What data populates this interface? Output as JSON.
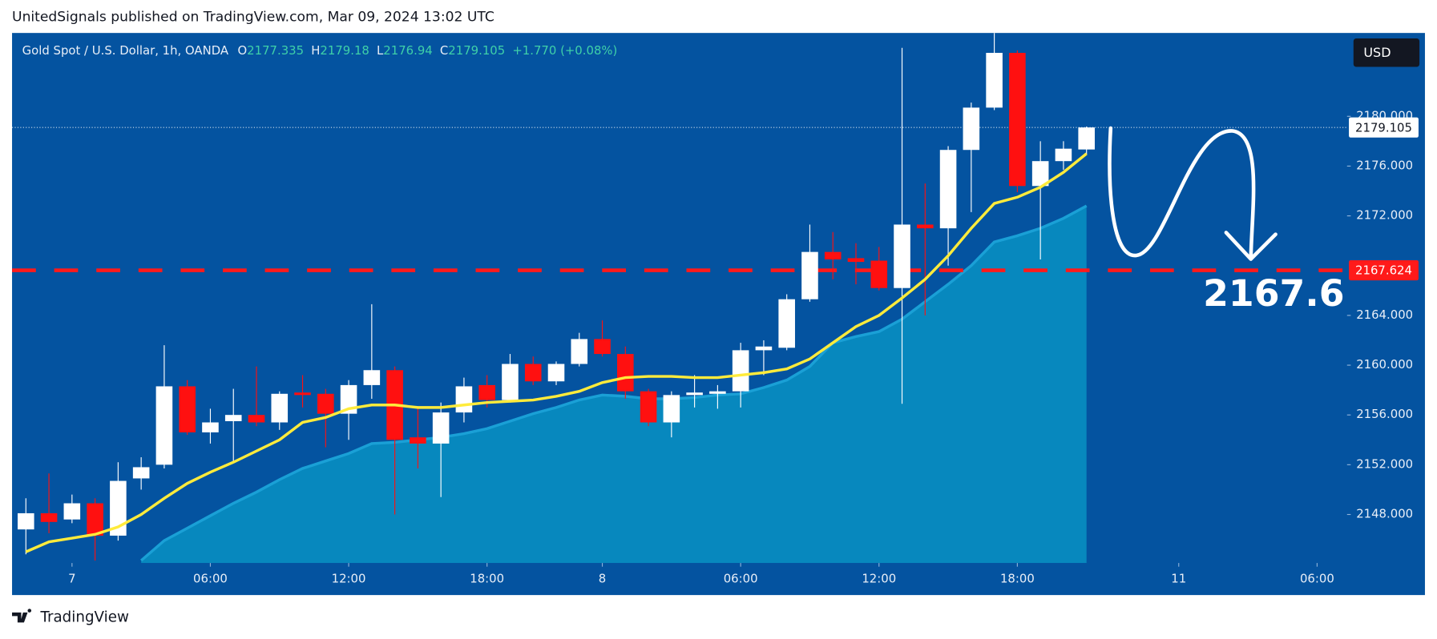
{
  "header": "UnitedSignals published on TradingView.com, Mar 09, 2024 13:02 UTC",
  "footer": "TradingView",
  "chart_data": {
    "type": "candlestick",
    "symbol": "Gold Spot / U.S. Dollar, 1h, OANDA",
    "legend_keys": [
      "O",
      "H",
      "L",
      "C"
    ],
    "change": "+1.770 (+0.08%)",
    "currency": "USD",
    "background": "#0453a0",
    "up_color": "#ffffff",
    "down_color": "#ff1010",
    "grid": false,
    "xlim": [
      -0.6,
      57.3
    ],
    "xticks": [
      {
        "value": 2,
        "label": "7"
      },
      {
        "value": 8,
        "label": "06:00"
      },
      {
        "value": 14,
        "label": "12:00"
      },
      {
        "value": 20,
        "label": "18:00"
      },
      {
        "value": 25,
        "label": "8"
      },
      {
        "value": 31,
        "label": "06:00"
      },
      {
        "value": 37,
        "label": "12:00"
      },
      {
        "value": 43,
        "label": "18:00"
      },
      {
        "value": 50,
        "label": "11"
      },
      {
        "value": 56,
        "label": "06:00"
      }
    ],
    "ylim": [
      2144.1,
      2186.7
    ],
    "yticks": [
      {
        "value": 2148,
        "label": "2148.000"
      },
      {
        "value": 2152,
        "label": "2152.000"
      },
      {
        "value": 2156,
        "label": "2156.000"
      },
      {
        "value": 2160,
        "label": "2160.000"
      },
      {
        "value": 2164,
        "label": "2164.000"
      },
      {
        "value": 2172,
        "label": "2172.000"
      },
      {
        "value": 2176,
        "label": "2176.000"
      },
      {
        "value": 2180,
        "label": "2180.000"
      }
    ],
    "candles": {
      "open": [
        2146.8,
        2148.1,
        2147.6,
        2148.9,
        2146.3,
        2150.9,
        2152.0,
        2158.3,
        2154.6,
        2155.5,
        2156.0,
        2155.4,
        2157.8,
        2157.7,
        2156.1,
        2158.4,
        2159.6,
        2154.2,
        2153.7,
        2156.2,
        2158.4,
        2157.2,
        2160.1,
        2158.7,
        2160.1,
        2162.1,
        2160.9,
        2157.9,
        2155.4,
        2157.6,
        2157.7,
        2157.9,
        2161.2,
        2161.4,
        2165.3,
        2169.1,
        2168.6,
        2168.4,
        2166.2,
        2171.3,
        2171.0,
        2177.3,
        2180.7,
        2185.1,
        2174.4,
        2176.4,
        2177.335
      ],
      "high": [
        2149.3,
        2151.3,
        2149.6,
        2149.3,
        2152.2,
        2152.6,
        2161.6,
        2158.8,
        2156.5,
        2158.1,
        2159.9,
        2157.9,
        2159.2,
        2158.1,
        2158.8,
        2164.9,
        2159.9,
        2156.6,
        2157.0,
        2159.0,
        2159.2,
        2160.9,
        2160.7,
        2160.3,
        2162.6,
        2163.6,
        2161.5,
        2158.1,
        2157.9,
        2159.2,
        2158.4,
        2161.8,
        2162.0,
        2165.7,
        2171.3,
        2170.7,
        2169.8,
        2169.5,
        2185.5,
        2174.6,
        2177.6,
        2181.1,
        2186.7,
        2185.3,
        2178.0,
        2178.0,
        2179.18
      ],
      "low": [
        2144.8,
        2146.5,
        2147.3,
        2144.3,
        2145.9,
        2150.0,
        2151.7,
        2154.4,
        2153.7,
        2152.2,
        2155.1,
        2154.8,
        2156.6,
        2153.4,
        2154.0,
        2157.3,
        2148.0,
        2151.7,
        2149.4,
        2155.4,
        2156.6,
        2157.0,
        2158.4,
        2158.4,
        2159.9,
        2160.7,
        2157.3,
        2155.1,
        2154.2,
        2156.6,
        2156.5,
        2156.6,
        2159.2,
        2161.2,
        2165.1,
        2166.9,
        2166.5,
        2166.0,
        2156.9,
        2164.0,
        2168.0,
        2172.3,
        2180.5,
        2173.9,
        2168.5,
        2175.7,
        2176.94
      ],
      "close": [
        2148.1,
        2147.4,
        2148.9,
        2146.3,
        2150.7,
        2151.8,
        2158.3,
        2154.6,
        2155.4,
        2156.0,
        2155.4,
        2157.7,
        2157.6,
        2156.1,
        2158.4,
        2159.6,
        2154.0,
        2153.7,
        2156.2,
        2158.3,
        2157.2,
        2160.1,
        2158.7,
        2160.1,
        2162.1,
        2160.9,
        2157.9,
        2155.4,
        2157.6,
        2157.8,
        2157.9,
        2161.2,
        2161.5,
        2165.3,
        2169.1,
        2168.5,
        2168.3,
        2166.2,
        2171.3,
        2171.0,
        2177.3,
        2180.7,
        2185.1,
        2174.4,
        2176.4,
        2177.4,
        2179.105
      ]
    },
    "ema": {
      "color": "#ffeb3b",
      "values": [
        2145.0,
        2145.8,
        2146.1,
        2146.4,
        2147.0,
        2148.0,
        2149.3,
        2150.5,
        2151.4,
        2152.2,
        2153.1,
        2154.0,
        2155.4,
        2155.8,
        2156.5,
        2156.8,
        2156.8,
        2156.6,
        2156.6,
        2156.8,
        2157.0,
        2157.1,
        2157.2,
        2157.5,
        2157.9,
        2158.6,
        2159.0,
        2159.1,
        2159.1,
        2159.0,
        2159.0,
        2159.2,
        2159.4,
        2159.7,
        2160.5,
        2161.8,
        2163.1,
        2164.0,
        2165.4,
        2166.9,
        2168.8,
        2171.0,
        2173.0,
        2173.5,
        2174.3,
        2175.5,
        2177.0
      ]
    },
    "area": {
      "color": "#0788be",
      "line_color": "#1aa0d6",
      "values": [
        null,
        null,
        null,
        null,
        null,
        2144.3,
        2145.9,
        2146.9,
        2147.9,
        2148.9,
        2149.8,
        2150.8,
        2151.7,
        2152.3,
        2152.9,
        2153.7,
        2153.8,
        2154.0,
        2154.2,
        2154.5,
        2154.9,
        2155.5,
        2156.1,
        2156.6,
        2157.2,
        2157.6,
        2157.5,
        2157.3,
        2157.3,
        2157.4,
        2157.6,
        2157.7,
        2158.2,
        2158.8,
        2159.9,
        2161.8,
        2162.3,
        2162.7,
        2163.7,
        2165.1,
        2166.5,
        2168.0,
        2169.9,
        2170.4,
        2171.0,
        2171.8,
        2172.8
      ]
    },
    "hline": {
      "value": 2167.624,
      "color": "#ff1a1a"
    },
    "target": 2167.6
  }
}
